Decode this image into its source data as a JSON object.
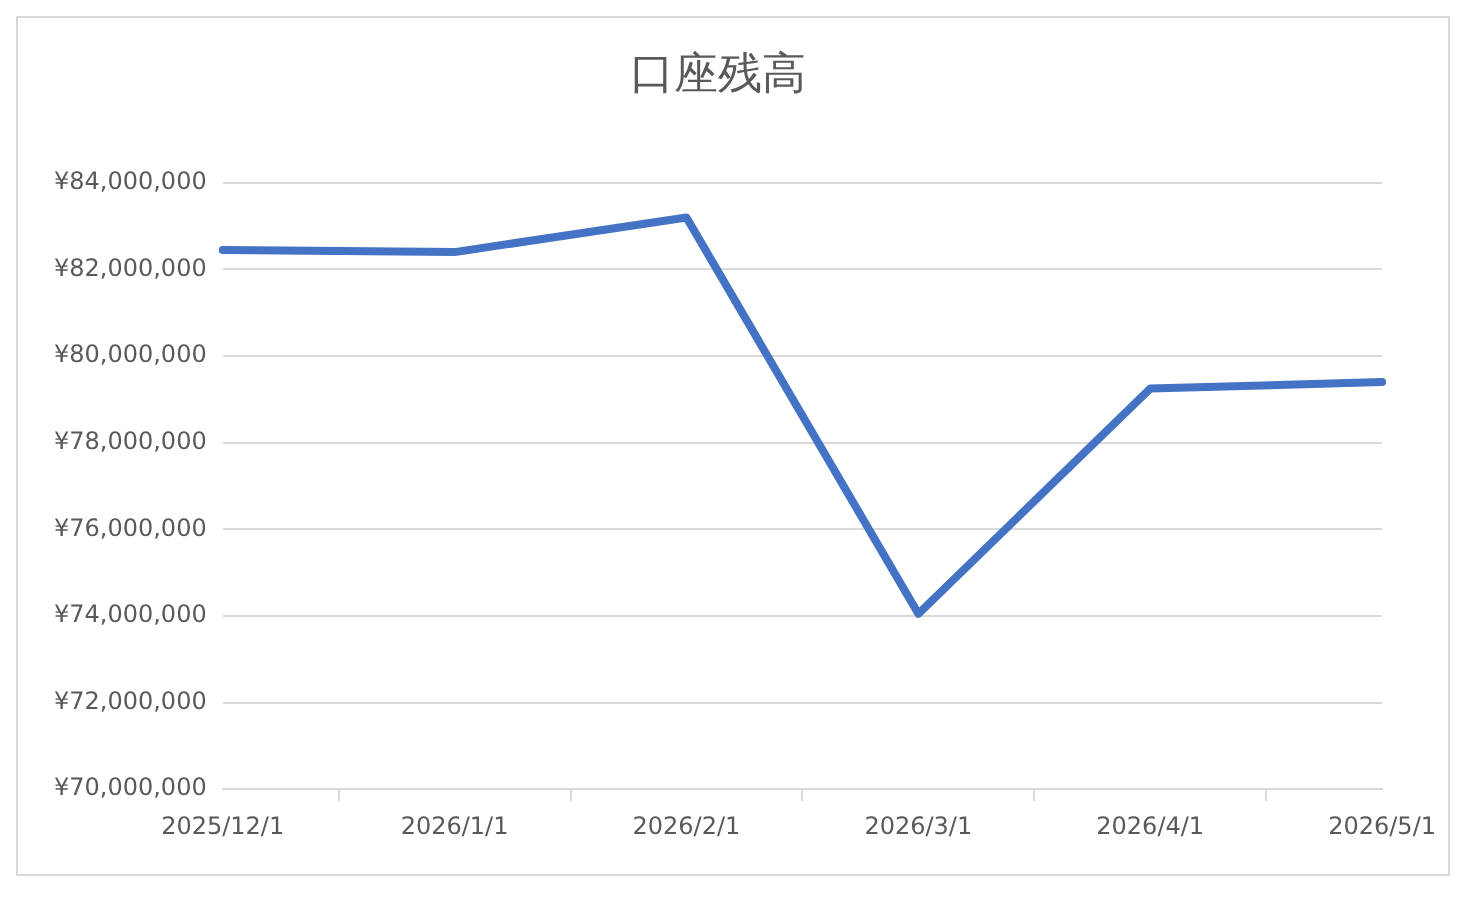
{
  "chart_data": {
    "type": "line",
    "title": "口座残高",
    "categories": [
      "2025/12/1",
      "2026/1/1",
      "2026/2/1",
      "2026/3/1",
      "2026/4/1",
      "2026/5/1"
    ],
    "series": [
      {
        "color": "#4472c4",
        "values": [
          82450000,
          82400000,
          83200000,
          74050000,
          79250000,
          79400000
        ]
      }
    ],
    "ylim": [
      70000000,
      84000000
    ],
    "yticks": [
      {
        "value": 70000000,
        "label": "¥70,000,000"
      },
      {
        "value": 72000000,
        "label": "¥72,000,000"
      },
      {
        "value": 74000000,
        "label": "¥74,000,000"
      },
      {
        "value": 76000000,
        "label": "¥76,000,000"
      },
      {
        "value": 78000000,
        "label": "¥78,000,000"
      },
      {
        "value": 80000000,
        "label": "¥80,000,000"
      },
      {
        "value": 82000000,
        "label": "¥82,000,000"
      },
      {
        "value": 84000000,
        "label": "¥84,000,000"
      }
    ],
    "grid": "y",
    "marker": "none",
    "line_style": "solid",
    "legend": false
  }
}
